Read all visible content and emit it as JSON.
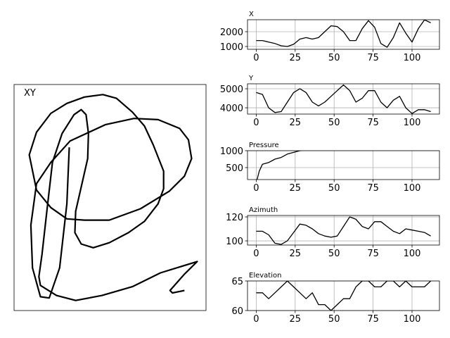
{
  "chart_data": [
    {
      "type": "line",
      "title": "XY",
      "color": "#000000",
      "x": [
        1390,
        1360,
        1270,
        1140,
        1030,
        930,
        910,
        980,
        1160,
        1400,
        1840,
        2200,
        2500,
        2770,
        2880,
        2920,
        2830,
        2640,
        2280,
        1890,
        1580,
        1360,
        1160,
        980,
        890,
        980,
        1160,
        1360,
        1580,
        1810,
        1980,
        2180,
        2330,
        2440,
        2570,
        2570,
        2500,
        2330,
        2130,
        1890,
        1690,
        1540,
        1460,
        1470,
        1560,
        1620,
        1630,
        1600,
        1540,
        1450,
        1300,
        1180,
        1110,
        1050,
        1010,
        1030,
        1230,
        1470,
        1800,
        2180,
        2530,
        2990,
        2830,
        2650,
        2680,
        2830
      ],
      "values": [
        4850,
        4400,
        3890,
        3650,
        3660,
        3890,
        4230,
        4560,
        4730,
        4900,
        5030,
        5080,
        5070,
        5000,
        4910,
        4760,
        4620,
        4500,
        4360,
        4270,
        4270,
        4280,
        4370,
        4510,
        4790,
        4970,
        5120,
        5200,
        5250,
        5270,
        5240,
        5130,
        5020,
        4870,
        4660,
        4520,
        4400,
        4260,
        4170,
        4090,
        4050,
        4080,
        4170,
        4340,
        4590,
        4760,
        4960,
        5110,
        5150,
        5110,
        4960,
        4730,
        4340,
        4000,
        3820,
        3750,
        3670,
        3630,
        3670,
        3740,
        3850,
        3940,
        3840,
        3710,
        3690,
        3710
      ],
      "xlim": [
        700,
        3100
      ],
      "ylim": [
        3550,
        5350
      ]
    },
    {
      "type": "line",
      "title": "X",
      "color": "#000000",
      "x": [
        0,
        4,
        8,
        12,
        16,
        20,
        24,
        28,
        32,
        36,
        40,
        44,
        48,
        52,
        56,
        60,
        64,
        68,
        72,
        76,
        80,
        84,
        88,
        92,
        96,
        100,
        104,
        108,
        112
      ],
      "values": [
        1400,
        1400,
        1300,
        1200,
        1050,
        1000,
        1150,
        1500,
        1600,
        1500,
        1600,
        2000,
        2400,
        2350,
        2000,
        1400,
        1400,
        2200,
        2750,
        2300,
        1200,
        950,
        1600,
        2600,
        1900,
        1300,
        2200,
        2800,
        2600
      ],
      "xlim": [
        -5.6,
        117.6
      ],
      "ylim": [
        810,
        2810
      ],
      "xticks": [
        0,
        25,
        50,
        75,
        100
      ],
      "yticks": [
        1000,
        2000
      ],
      "grid": true
    },
    {
      "type": "line",
      "title": "Y",
      "color": "#000000",
      "x": [
        0,
        4,
        8,
        12,
        16,
        20,
        24,
        28,
        32,
        36,
        40,
        44,
        48,
        52,
        56,
        60,
        64,
        68,
        72,
        76,
        80,
        84,
        88,
        92,
        96,
        100,
        104,
        108,
        112
      ],
      "values": [
        4800,
        4700,
        4000,
        3750,
        3800,
        4300,
        4800,
        5000,
        4800,
        4300,
        4100,
        4300,
        4600,
        4900,
        5200,
        4900,
        4300,
        4500,
        4900,
        4900,
        4300,
        4000,
        4400,
        4600,
        4000,
        3700,
        3900,
        3900,
        3800
      ],
      "xlim": [
        -5.6,
        117.6
      ],
      "ylim": [
        3670,
        5260
      ],
      "xticks": [
        0,
        25,
        50,
        75,
        100
      ],
      "yticks": [
        4000,
        5000
      ],
      "grid": true
    },
    {
      "type": "line",
      "title": "Pressure",
      "color": "#000000",
      "x": [
        0,
        2,
        4,
        8,
        12,
        16,
        20,
        24,
        28,
        32
      ],
      "values": [
        50,
        400,
        600,
        650,
        750,
        800,
        900,
        950,
        1000,
        1020
      ],
      "xlim": [
        -5.6,
        117.6
      ],
      "ylim": [
        146,
        1000
      ],
      "xticks": [
        0,
        25,
        50,
        75,
        100
      ],
      "yticks": [
        500,
        1000
      ],
      "grid": true
    },
    {
      "type": "line",
      "title": "Azimuth",
      "color": "#000000",
      "x": [
        0,
        4,
        8,
        12,
        16,
        20,
        24,
        28,
        32,
        36,
        40,
        44,
        48,
        52,
        56,
        60,
        64,
        68,
        72,
        76,
        80,
        84,
        88,
        92,
        96,
        100,
        104,
        108,
        112
      ],
      "values": [
        108,
        108,
        105,
        98,
        97,
        100,
        107,
        114,
        113,
        110,
        106,
        104,
        103,
        104,
        112,
        120,
        118,
        112,
        110,
        116,
        116,
        112,
        108,
        106,
        110,
        109,
        108,
        107,
        104
      ],
      "xlim": [
        -5.6,
        117.6
      ],
      "ylim": [
        96.5,
        121.2
      ],
      "xticks": [
        0,
        25,
        50,
        75,
        100
      ],
      "yticks": [
        100,
        120
      ],
      "grid": true
    },
    {
      "type": "line",
      "title": "Elevation",
      "color": "#000000",
      "x": [
        0,
        4,
        8,
        12,
        16,
        20,
        24,
        28,
        32,
        36,
        40,
        44,
        48,
        52,
        56,
        60,
        64,
        68,
        72,
        76,
        80,
        84,
        88,
        92,
        96,
        100,
        104,
        108,
        112
      ],
      "values": [
        63,
        63,
        62,
        63,
        64,
        65,
        64,
        63,
        62,
        63,
        61,
        61,
        60,
        61,
        62,
        62,
        64,
        65,
        65,
        64,
        64,
        65,
        65,
        64,
        65,
        64,
        64,
        64,
        65
      ],
      "xlim": [
        -5.6,
        117.6
      ],
      "ylim": [
        60,
        65
      ],
      "xticks": [
        0,
        25,
        50,
        75,
        100
      ],
      "yticks": [
        60,
        65
      ],
      "grid": true
    }
  ]
}
